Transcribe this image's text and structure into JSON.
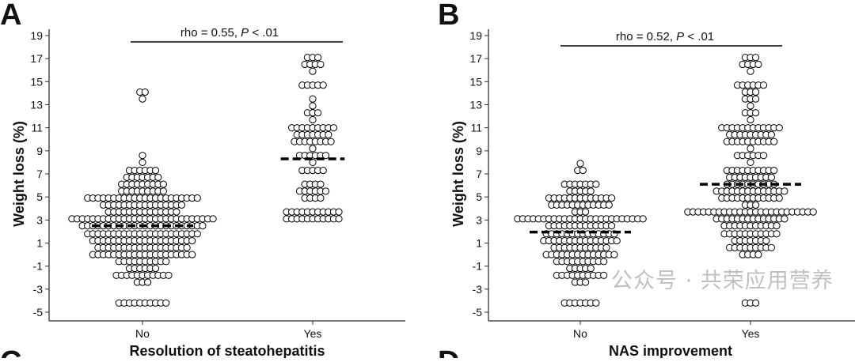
{
  "watermark": "公众号 · 共荣应用营养",
  "partial_letters": [
    "C",
    "D"
  ],
  "colors": {
    "marker_stroke": "#000000",
    "marker_fill": "#ffffff",
    "axis": "#333333"
  },
  "chart_data": [
    {
      "type": "scatter",
      "subtype": "dot-plot",
      "panel": "A",
      "ylabel": "Weight loss (%)",
      "xlabel": "Resolution of steatohepatitis",
      "categories": [
        "No",
        "Yes"
      ],
      "ylim": [
        -5.8,
        19.5
      ],
      "yticks": [
        19,
        17,
        15,
        13,
        11,
        9,
        7,
        5,
        3,
        1,
        -1,
        -3,
        -5
      ],
      "annotation": {
        "text": "rho = 0.55, ",
        "p_label": "P",
        "p_text": " < .01"
      },
      "groups": [
        {
          "name": "No",
          "median": 2.5,
          "rows": [
            [
              14.1,
              2
            ],
            [
              13.5,
              1
            ],
            [
              8.6,
              1
            ],
            [
              8.0,
              1
            ],
            [
              7.3,
              6
            ],
            [
              6.7,
              7
            ],
            [
              6.1,
              9
            ],
            [
              5.5,
              9
            ],
            [
              4.9,
              22
            ],
            [
              4.3,
              16
            ],
            [
              3.7,
              14
            ],
            [
              3.1,
              28
            ],
            [
              2.5,
              24
            ],
            [
              1.8,
              22
            ],
            [
              1.2,
              20
            ],
            [
              0.6,
              18
            ],
            [
              0.0,
              20
            ],
            [
              -0.6,
              10
            ],
            [
              -1.2,
              6
            ],
            [
              -1.8,
              11
            ],
            [
              -2.4,
              3
            ],
            [
              -4.2,
              10
            ]
          ]
        },
        {
          "name": "Yes",
          "median": 8.3,
          "rows": [
            [
              17.1,
              3
            ],
            [
              16.5,
              4
            ],
            [
              15.9,
              1
            ],
            [
              14.7,
              5
            ],
            [
              13.5,
              1
            ],
            [
              12.9,
              1
            ],
            [
              12.3,
              3
            ],
            [
              11.7,
              1
            ],
            [
              11.0,
              9
            ],
            [
              10.4,
              7
            ],
            [
              9.8,
              8
            ],
            [
              9.2,
              1
            ],
            [
              8.6,
              6
            ],
            [
              8.0,
              1
            ],
            [
              7.3,
              5
            ],
            [
              6.1,
              4
            ],
            [
              5.5,
              6
            ],
            [
              4.9,
              4
            ],
            [
              3.7,
              11
            ],
            [
              3.1,
              11
            ]
          ]
        }
      ]
    },
    {
      "type": "scatter",
      "subtype": "dot-plot",
      "panel": "B",
      "ylabel": "Weight loss (%)",
      "xlabel": "NAS improvement",
      "categories": [
        "No",
        "Yes"
      ],
      "ylim": [
        -5.8,
        19.5
      ],
      "yticks": [
        19,
        17,
        15,
        13,
        11,
        9,
        7,
        5,
        3,
        1,
        -1,
        -3,
        -5
      ],
      "annotation": {
        "text": "rho = 0.52, ",
        "p_label": "P",
        "p_text": " < .01"
      },
      "groups": [
        {
          "name": "No",
          "median": 1.95,
          "rows": [
            [
              7.9,
              1
            ],
            [
              7.3,
              2
            ],
            [
              6.1,
              7
            ],
            [
              5.5,
              5
            ],
            [
              4.9,
              13
            ],
            [
              4.3,
              12
            ],
            [
              3.7,
              3
            ],
            [
              3.1,
              25
            ],
            [
              2.5,
              13
            ],
            [
              1.8,
              14
            ],
            [
              1.2,
              15
            ],
            [
              0.6,
              11
            ],
            [
              0.0,
              14
            ],
            [
              -0.6,
              10
            ],
            [
              -1.2,
              5
            ],
            [
              -1.8,
              10
            ],
            [
              -2.4,
              3
            ],
            [
              -4.2,
              7
            ]
          ]
        },
        {
          "name": "Yes",
          "median": 6.1,
          "rows": [
            [
              17.1,
              3
            ],
            [
              16.5,
              4
            ],
            [
              15.9,
              1
            ],
            [
              14.7,
              6
            ],
            [
              14.1,
              3
            ],
            [
              13.5,
              3
            ],
            [
              12.9,
              1
            ],
            [
              12.3,
              3
            ],
            [
              11.7,
              1
            ],
            [
              11.0,
              12
            ],
            [
              10.4,
              9
            ],
            [
              9.8,
              10
            ],
            [
              9.2,
              1
            ],
            [
              8.6,
              6
            ],
            [
              8.0,
              1
            ],
            [
              7.3,
              10
            ],
            [
              6.7,
              9
            ],
            [
              6.1,
              10
            ],
            [
              5.5,
              14
            ],
            [
              4.9,
              12
            ],
            [
              4.3,
              3
            ],
            [
              3.7,
              25
            ],
            [
              3.1,
              14
            ],
            [
              2.5,
              11
            ],
            [
              1.8,
              11
            ],
            [
              1.2,
              7
            ],
            [
              0.6,
              9
            ],
            [
              0.0,
              4
            ],
            [
              -4.2,
              3
            ]
          ]
        }
      ]
    }
  ]
}
